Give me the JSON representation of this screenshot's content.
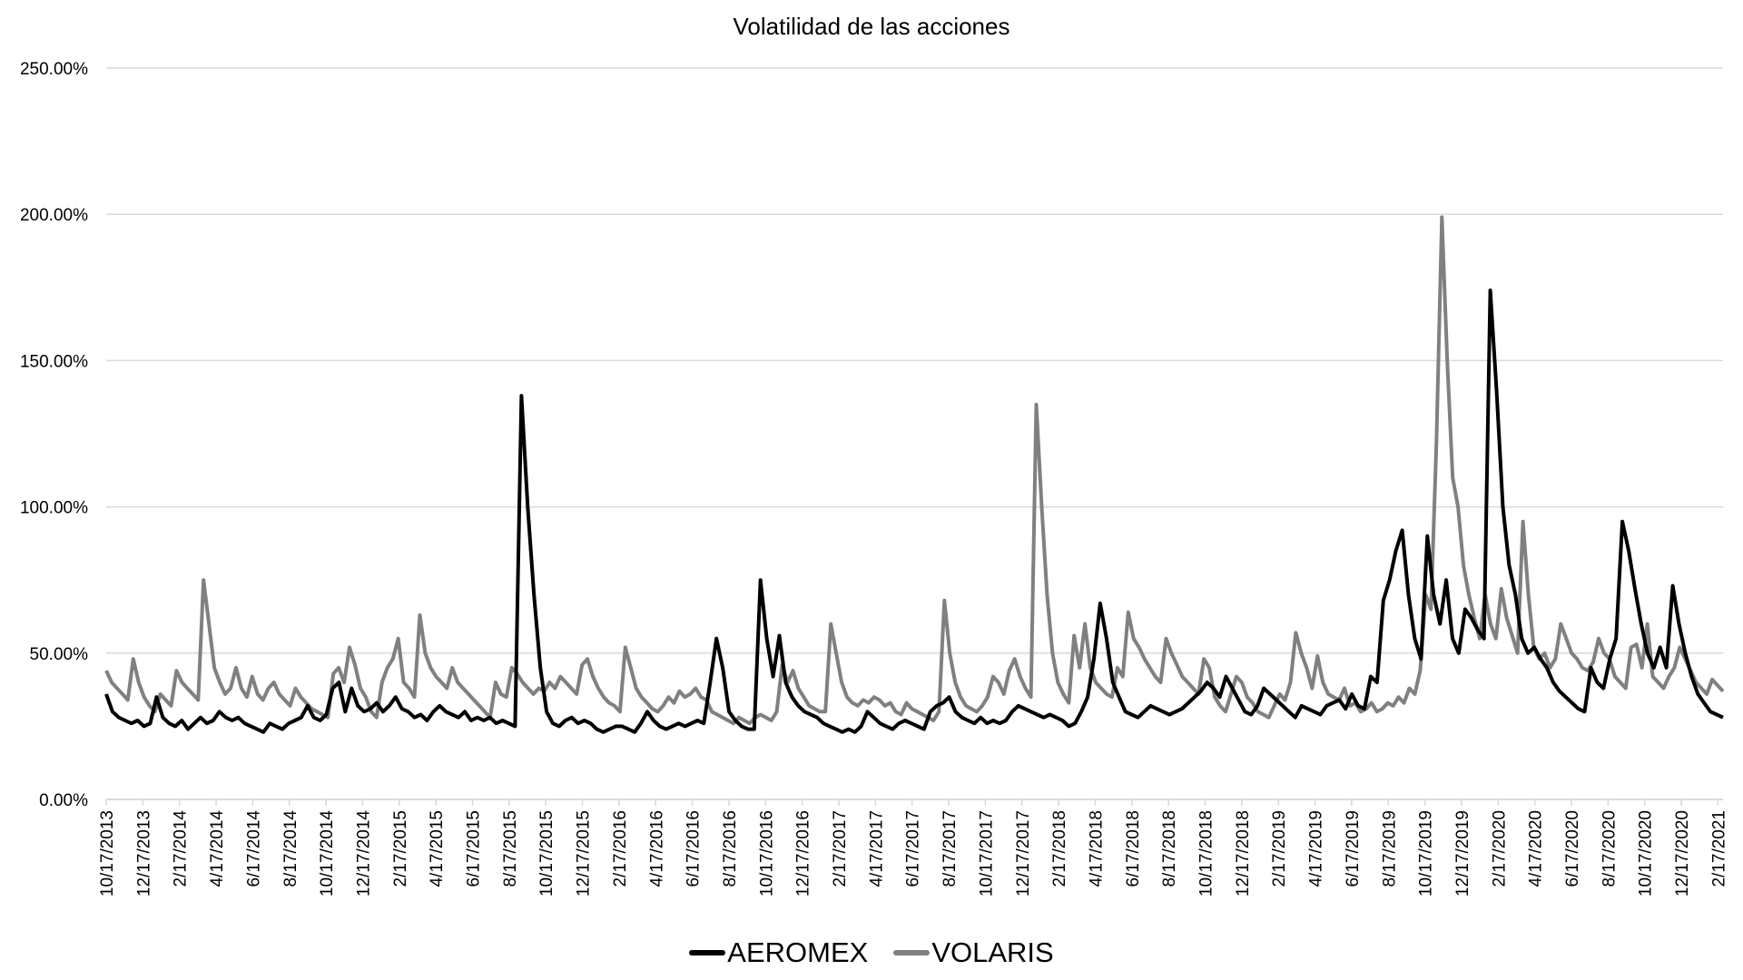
{
  "chart_data": {
    "type": "line",
    "title": "Volatilidad de las acciones",
    "xlabel": "",
    "ylabel": "",
    "ylim": [
      0,
      250
    ],
    "y_ticks": [
      "0.00%",
      "50.00%",
      "100.00%",
      "150.00%",
      "200.00%",
      "250.00%"
    ],
    "y_tick_values": [
      0,
      50,
      100,
      150,
      200,
      250
    ],
    "x_tick_labels": [
      "10/17/2013",
      "12/17/2013",
      "2/17/2014",
      "4/17/2014",
      "6/17/2014",
      "8/17/2014",
      "10/17/2014",
      "12/17/2014",
      "2/17/2015",
      "4/17/2015",
      "6/17/2015",
      "8/17/2015",
      "10/17/2015",
      "12/17/2015",
      "2/17/2016",
      "4/17/2016",
      "6/17/2016",
      "8/17/2016",
      "10/17/2016",
      "12/17/2016",
      "2/17/2017",
      "4/17/2017",
      "6/17/2017",
      "8/17/2017",
      "10/17/2017",
      "12/17/2017",
      "2/17/2018",
      "4/17/2018",
      "6/17/2018",
      "8/17/2018",
      "10/17/2018",
      "12/17/2018",
      "2/17/2019",
      "4/17/2019",
      "6/17/2019",
      "8/17/2019",
      "10/17/2019",
      "12/17/2019",
      "2/17/2020",
      "4/17/2020",
      "6/17/2020",
      "8/17/2020",
      "10/17/2020",
      "12/17/2020",
      "2/17/2021"
    ],
    "x_range": [
      "10/17/2013",
      "5/2021"
    ],
    "grid": true,
    "legend_position": "bottom",
    "value_unit": "%",
    "sampling_note": "values sampled at uniform intervals (~2 weeks) across x_range",
    "series": [
      {
        "name": "AEROMEX",
        "color": "#000000",
        "values": [
          36,
          30,
          28,
          27,
          26,
          27,
          25,
          26,
          35,
          28,
          26,
          25,
          27,
          24,
          26,
          28,
          26,
          27,
          30,
          28,
          27,
          28,
          26,
          25,
          24,
          23,
          26,
          25,
          24,
          26,
          27,
          28,
          32,
          28,
          27,
          29,
          38,
          40,
          30,
          38,
          32,
          30,
          31,
          33,
          30,
          32,
          35,
          31,
          30,
          28,
          29,
          27,
          30,
          32,
          30,
          29,
          28,
          30,
          27,
          28,
          27,
          28,
          26,
          27,
          26,
          25,
          138,
          100,
          70,
          45,
          30,
          26,
          25,
          27,
          28,
          26,
          27,
          26,
          24,
          23,
          24,
          25,
          25,
          24,
          23,
          26,
          30,
          27,
          25,
          24,
          25,
          26,
          25,
          26,
          27,
          26,
          40,
          55,
          45,
          30,
          27,
          25,
          24,
          24,
          75,
          55,
          42,
          56,
          40,
          35,
          32,
          30,
          29,
          28,
          26,
          25,
          24,
          23,
          24,
          23,
          25,
          30,
          28,
          26,
          25,
          24,
          26,
          27,
          26,
          25,
          24,
          30,
          32,
          33,
          35,
          30,
          28,
          27,
          26,
          28,
          26,
          27,
          26,
          27,
          30,
          32,
          31,
          30,
          29,
          28,
          29,
          28,
          27,
          25,
          26,
          30,
          35,
          48,
          67,
          55,
          40,
          35,
          30,
          29,
          28,
          30,
          32,
          31,
          30,
          29,
          30,
          31,
          33,
          35,
          37,
          40,
          38,
          35,
          42,
          38,
          34,
          30,
          29,
          32,
          38,
          36,
          34,
          32,
          30,
          28,
          32,
          31,
          30,
          29,
          32,
          33,
          34,
          31,
          36,
          32,
          31,
          42,
          40,
          68,
          75,
          85,
          92,
          70,
          55,
          48,
          90,
          70,
          60,
          75,
          55,
          50,
          65,
          62,
          58,
          55,
          174,
          140,
          100,
          80,
          70,
          55,
          50,
          52,
          48,
          45,
          40,
          37,
          35,
          33,
          31,
          30,
          45,
          40,
          38,
          48,
          55,
          95,
          85,
          72,
          60,
          50,
          45,
          52,
          45,
          73,
          60,
          50,
          42,
          36,
          33,
          30,
          29,
          28
        ],
        "max": 174
      },
      {
        "name": "VOLARIS",
        "color": "#808080",
        "values": [
          44,
          40,
          38,
          36,
          34,
          48,
          40,
          35,
          32,
          30,
          36,
          34,
          32,
          44,
          40,
          38,
          36,
          34,
          75,
          60,
          45,
          40,
          36,
          38,
          45,
          38,
          35,
          42,
          36,
          34,
          38,
          40,
          36,
          34,
          32,
          38,
          35,
          33,
          31,
          30,
          29,
          28,
          43,
          45,
          40,
          52,
          46,
          38,
          35,
          30,
          28,
          40,
          45,
          48,
          55,
          40,
          38,
          35,
          63,
          50,
          45,
          42,
          40,
          38,
          45,
          40,
          38,
          36,
          34,
          32,
          30,
          28,
          40,
          36,
          35,
          45,
          43,
          40,
          38,
          36,
          38,
          37,
          40,
          38,
          42,
          40,
          38,
          36,
          46,
          48,
          42,
          38,
          35,
          33,
          32,
          30,
          52,
          45,
          38,
          35,
          33,
          31,
          30,
          32,
          35,
          33,
          37,
          35,
          36,
          38,
          35,
          34,
          30,
          29,
          28,
          27,
          26,
          28,
          27,
          26,
          28,
          29,
          28,
          27,
          30,
          46,
          40,
          44,
          38,
          35,
          32,
          31,
          30,
          30,
          60,
          50,
          40,
          35,
          33,
          32,
          34,
          33,
          35,
          34,
          32,
          33,
          30,
          29,
          33,
          31,
          30,
          29,
          28,
          27,
          30,
          68,
          50,
          40,
          35,
          32,
          31,
          30,
          32,
          35,
          42,
          40,
          36,
          44,
          48,
          42,
          38,
          35,
          135,
          100,
          70,
          50,
          40,
          36,
          33,
          56,
          45,
          60,
          45,
          40,
          38,
          36,
          35,
          45,
          42,
          64,
          55,
          52,
          48,
          45,
          42,
          40,
          55,
          50,
          46,
          42,
          40,
          38,
          36,
          48,
          45,
          35,
          32,
          30,
          36,
          42,
          40,
          35,
          33,
          30,
          29,
          28,
          32,
          36,
          34,
          40,
          57,
          50,
          45,
          38,
          49,
          40,
          36,
          35,
          34,
          38,
          32,
          33,
          30,
          31,
          33,
          30,
          31,
          33,
          32,
          35,
          33,
          38,
          36,
          44,
          70,
          65,
          122,
          199,
          150,
          110,
          100,
          80,
          70,
          62,
          55,
          70,
          60,
          55,
          72,
          62,
          56,
          50,
          95,
          70,
          52,
          48,
          50,
          45,
          48,
          60,
          55,
          50,
          48,
          45,
          44,
          47,
          55,
          50,
          48,
          42,
          40,
          38,
          52,
          53,
          45,
          60,
          42,
          40,
          38,
          42,
          45,
          52,
          48,
          44,
          40,
          38,
          36,
          41,
          39,
          37
        ],
        "max": 199
      }
    ]
  },
  "legend": {
    "items": [
      {
        "label": "AEROMEX",
        "color": "#000000"
      },
      {
        "label": "VOLARIS",
        "color": "#808080"
      }
    ]
  }
}
